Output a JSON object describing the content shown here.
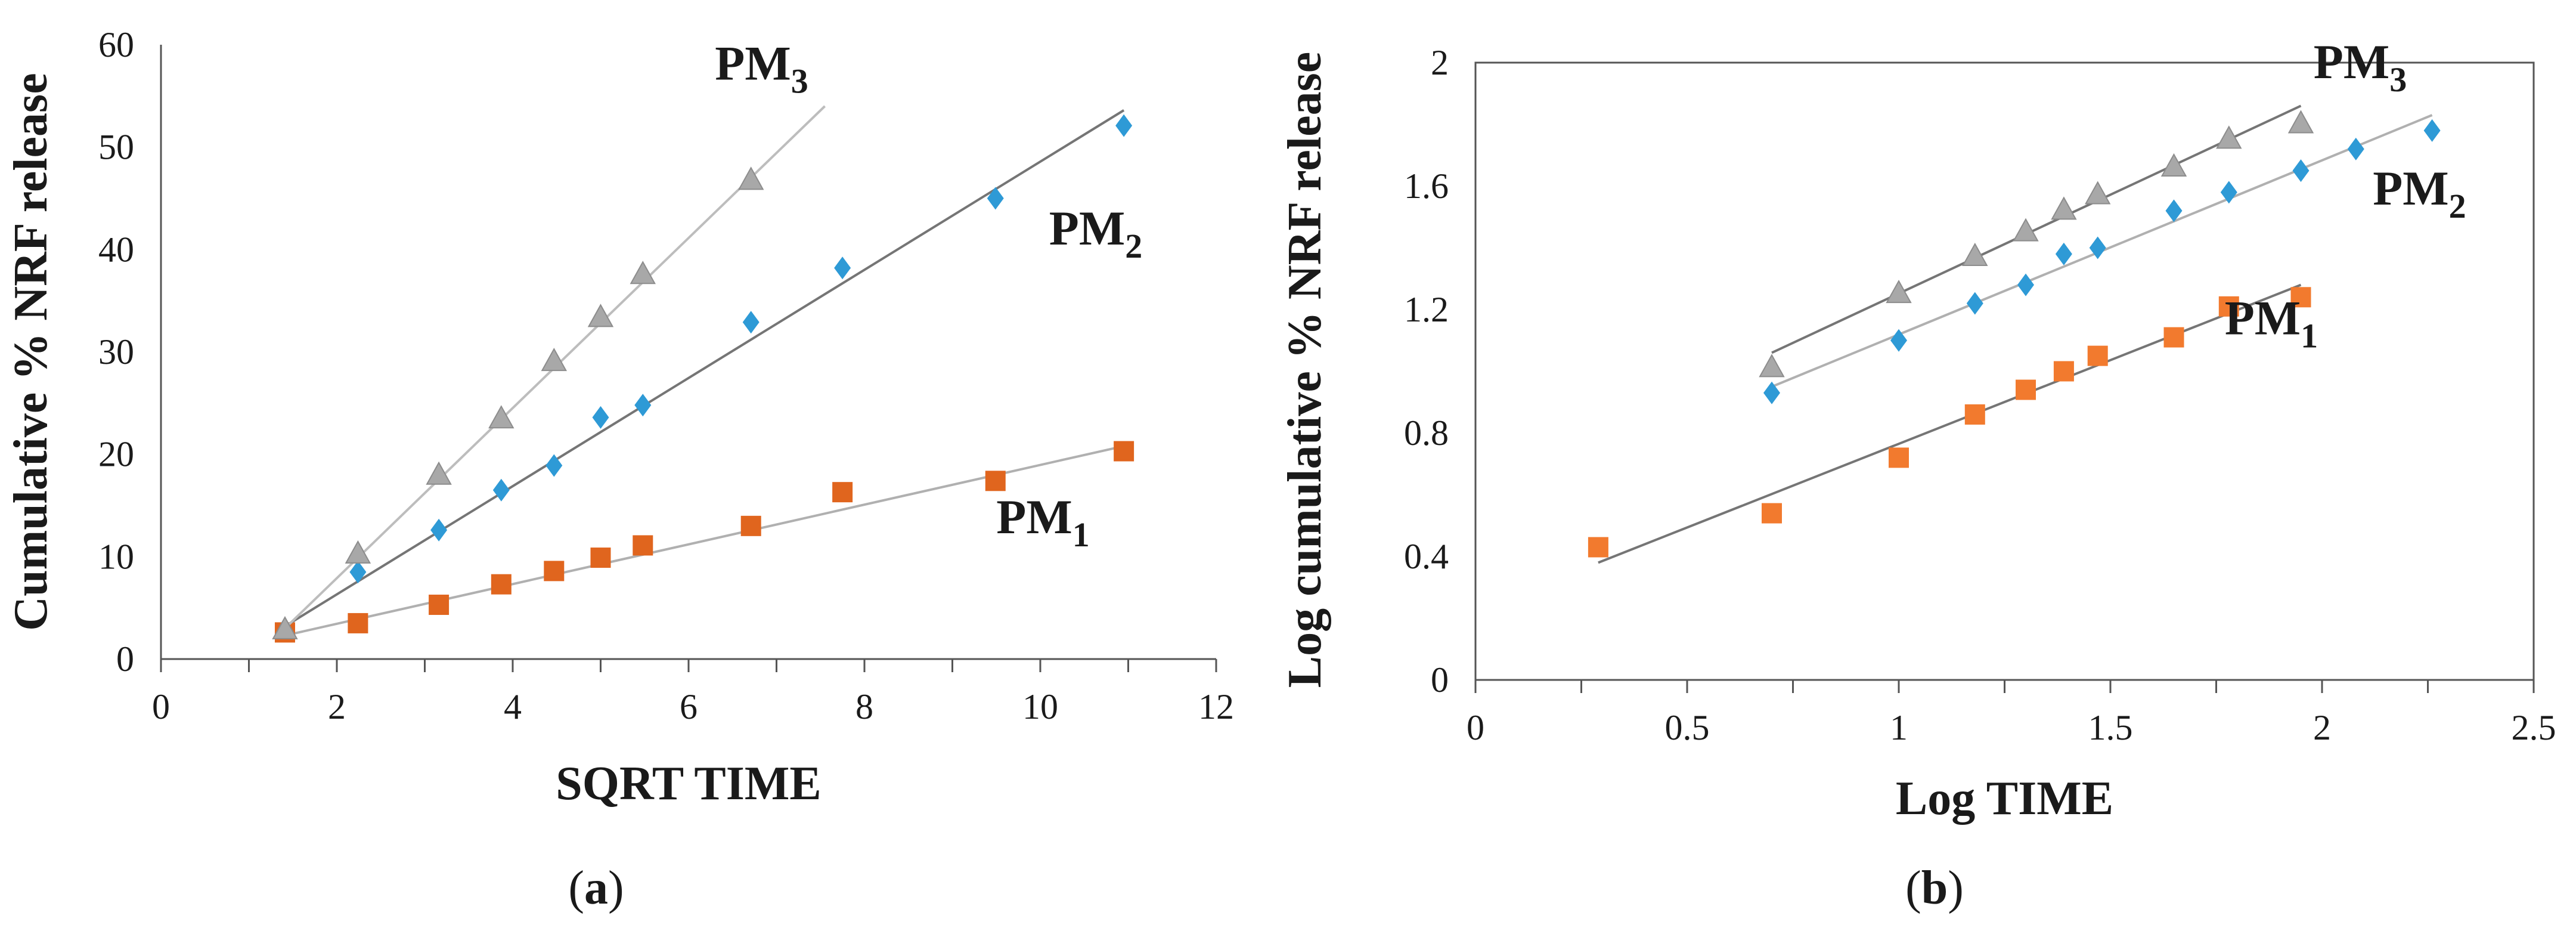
{
  "chart_data": [
    {
      "type": "scatter",
      "panel_label": "b-a",
      "panel_letter": "a",
      "xlabel": "SQRT TIME",
      "ylabel": "Cumulative % NRF release",
      "xlim": [
        0,
        12
      ],
      "ylim": [
        0,
        60
      ],
      "xticks": [
        0,
        2,
        4,
        6,
        8,
        10,
        12
      ],
      "yticks": [
        0,
        10,
        20,
        30,
        40,
        50,
        60
      ],
      "xtick_labels": [
        "0",
        "2",
        "4",
        "6",
        "8",
        "10",
        "12"
      ],
      "ytick_labels": [
        "0",
        "10",
        "20",
        "30",
        "40",
        "50",
        "60"
      ],
      "series": [
        {
          "name": "PM1",
          "label_main": "PM",
          "label_sub": "1",
          "marker": "square",
          "color": "#E0651E",
          "line_color": "#B0B0B0",
          "x": [
            1.41,
            2.24,
            3.16,
            3.87,
            4.47,
            5.0,
            5.48,
            6.71,
            7.75,
            9.49,
            10.95
          ],
          "y": [
            2.6,
            3.5,
            5.3,
            7.3,
            8.6,
            9.9,
            11.1,
            13.0,
            16.3,
            17.4,
            20.3
          ],
          "fit": [
            [
              1.41,
              2.3
            ],
            [
              10.95,
              20.8
            ]
          ],
          "label_at": [
            9.5,
            12.3
          ]
        },
        {
          "name": "PM2",
          "label_main": "PM",
          "label_sub": "2",
          "marker": "diamond",
          "color": "#2E9AD6",
          "line_color": "#757575",
          "x": [
            2.24,
            3.16,
            3.87,
            4.47,
            5.0,
            5.48,
            6.71,
            7.75,
            9.49,
            10.95
          ],
          "y": [
            8.5,
            12.6,
            16.5,
            18.9,
            23.6,
            24.8,
            32.9,
            38.2,
            45.0,
            52.1
          ],
          "fit": [
            [
              1.41,
              3.2
            ],
            [
              10.95,
              53.6
            ]
          ],
          "label_at": [
            10.1,
            40.5
          ]
        },
        {
          "name": "PM3",
          "label_main": "PM",
          "label_sub": "3",
          "marker": "triangle",
          "color": "#A8A8A8",
          "line_color": "#BDBDBD",
          "x": [
            1.41,
            2.24,
            3.16,
            3.87,
            4.47,
            5.0,
            5.48,
            6.71
          ],
          "y": [
            2.8,
            10.2,
            17.9,
            23.4,
            29.0,
            33.3,
            37.5,
            46.7
          ],
          "fit": [
            [
              1.41,
              3.0
            ],
            [
              7.55,
              54.0
            ]
          ],
          "label_at": [
            6.3,
            56.6
          ]
        }
      ]
    },
    {
      "type": "scatter",
      "panel_label": "b-b",
      "panel_letter": "b",
      "xlabel": "Log TIME",
      "ylabel": "Log cumulative % NRF release",
      "xlim": [
        0,
        2.5
      ],
      "ylim": [
        0,
        2
      ],
      "xticks": [
        0,
        0.5,
        1,
        1.5,
        2,
        2.5
      ],
      "yticks": [
        0,
        0.4,
        0.8,
        1.2,
        1.6,
        2
      ],
      "xtick_labels": [
        "0",
        "0.5",
        "1",
        "1.5",
        "2",
        "2.5"
      ],
      "ytick_labels": [
        "0",
        "0.4",
        "0.8",
        "1.2",
        "1.6",
        "2"
      ],
      "series": [
        {
          "name": "PM1",
          "label_main": "PM",
          "label_sub": "1",
          "marker": "square",
          "color": "#F27A2E",
          "line_color": "#757575",
          "x": [
            0.29,
            0.7,
            1.0,
            1.18,
            1.3,
            1.39,
            1.47,
            1.65,
            1.78,
            1.95
          ],
          "y": [
            0.43,
            0.54,
            0.72,
            0.86,
            0.94,
            1.0,
            1.05,
            1.11,
            1.21,
            1.24
          ],
          "fit": [
            [
              0.29,
              0.38
            ],
            [
              1.95,
              1.28
            ]
          ],
          "label_at": [
            1.77,
            1.12
          ]
        },
        {
          "name": "PM2",
          "label_main": "PM",
          "label_sub": "2",
          "marker": "diamond",
          "color": "#2E9AD6",
          "line_color": "#B0B0B0",
          "x": [
            0.7,
            1.0,
            1.18,
            1.3,
            1.39,
            1.47,
            1.65,
            1.78,
            1.95,
            2.08,
            2.26
          ],
          "y": [
            0.93,
            1.1,
            1.22,
            1.28,
            1.38,
            1.4,
            1.52,
            1.58,
            1.65,
            1.72,
            1.78
          ],
          "fit": [
            [
              0.7,
              0.95
            ],
            [
              2.26,
              1.83
            ]
          ],
          "label_at": [
            2.12,
            1.54
          ]
        },
        {
          "name": "PM3",
          "label_main": "PM",
          "label_sub": "3",
          "marker": "triangle",
          "color": "#A8A8A8",
          "line_color": "#757575",
          "x": [
            0.7,
            1.0,
            1.18,
            1.3,
            1.39,
            1.47,
            1.65,
            1.78,
            1.95
          ],
          "y": [
            1.01,
            1.25,
            1.37,
            1.45,
            1.52,
            1.57,
            1.66,
            1.75,
            1.8
          ],
          "fit": [
            [
              0.7,
              1.06
            ],
            [
              1.95,
              1.86
            ]
          ],
          "label_at": [
            1.98,
            1.95
          ]
        }
      ]
    }
  ]
}
